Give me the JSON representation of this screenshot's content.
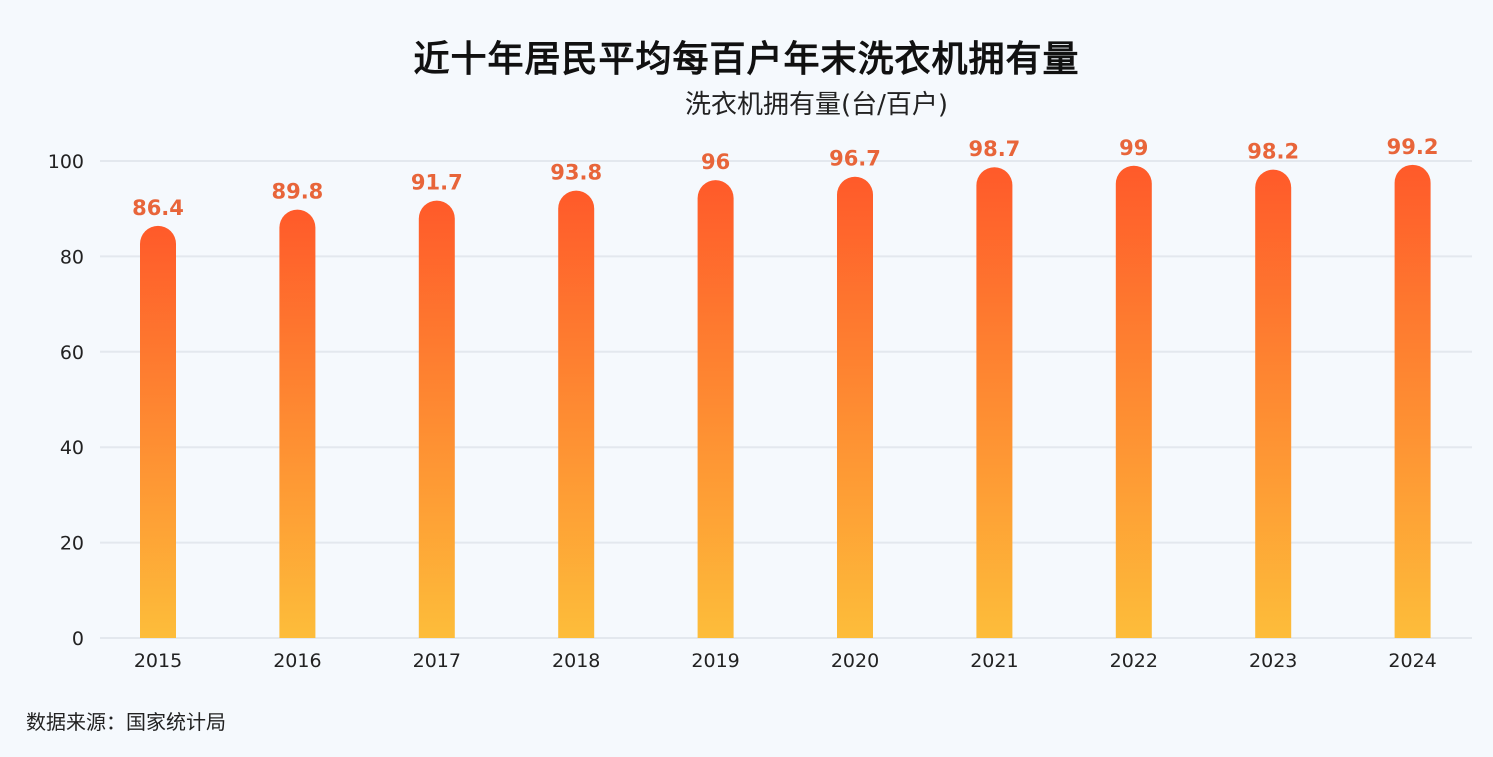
{
  "chart_data": {
    "type": "bar",
    "title": "近十年居民平均每百户年末洗衣机拥有量",
    "subtitle": "洗衣机拥有量(台/百户)",
    "categories": [
      "2015",
      "2016",
      "2017",
      "2018",
      "2019",
      "2020",
      "2021",
      "2022",
      "2023",
      "2024"
    ],
    "values": [
      86.4,
      89.8,
      91.7,
      93.8,
      96,
      96.7,
      98.7,
      99,
      98.2,
      99.2
    ],
    "value_labels": [
      "86.4",
      "89.8",
      "91.7",
      "93.8",
      "96",
      "96.7",
      "98.7",
      "99",
      "98.2",
      "99.2"
    ],
    "ylim": [
      0,
      100
    ],
    "yticks": [
      0,
      20,
      40,
      60,
      80,
      100
    ],
    "xlabel": "",
    "ylabel": "洗衣机拥有量(台/百户)",
    "grid": true,
    "colors": {
      "bar_top": "#ff5a2a",
      "bar_bottom": "#fdbd3a",
      "value_label": "#e8653a",
      "grid": "#e3e8ee"
    }
  },
  "source": "数据来源：国家统计局"
}
